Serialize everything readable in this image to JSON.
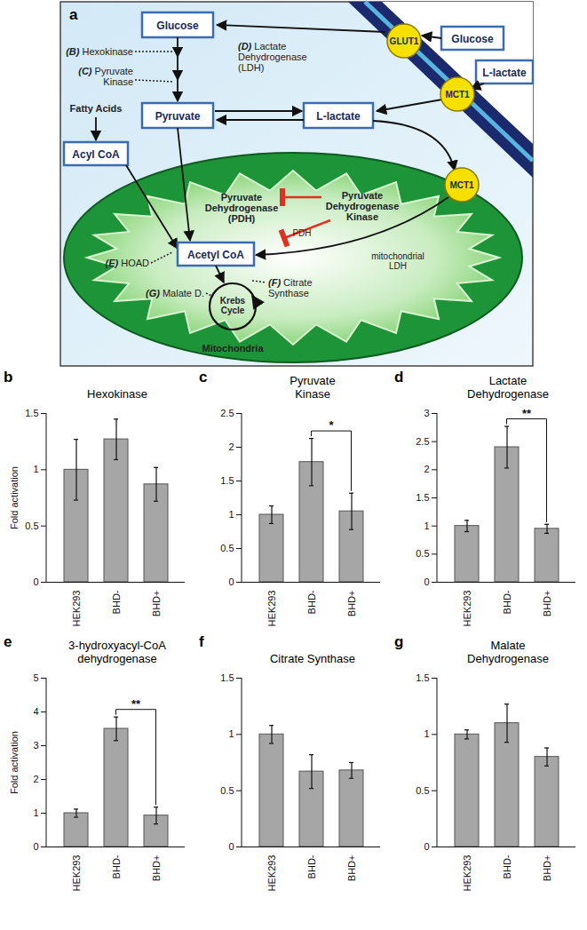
{
  "diagram": {
    "panel": "a",
    "boxes": {
      "glucose_out": "Glucose",
      "lactate_out": "L-lactate",
      "glucose_in": "Glucose",
      "pyruvate": "Pyruvate",
      "lactate_in": "L-lactate",
      "acyl_coa": "Acyl CoA",
      "acetyl_coa": "Acetyl CoA"
    },
    "transporters": {
      "glut1": "GLUT1",
      "mct1_cell": "MCT1",
      "mct1_mito": "MCT1"
    },
    "enzymes": {
      "hexokinase": {
        "letter": "(B)",
        "label": "Hexokinase"
      },
      "pyruvate_kinase": {
        "letter": "(C)",
        "label": "Pyruvate\nKinase"
      },
      "ldh": {
        "letter": "(D)",
        "label": "Lactate\nDehydrogenase\n(LDH)"
      },
      "hoad": {
        "letter": "(E)",
        "label": "HOAD"
      },
      "citrate_synthase": {
        "letter": "(F)",
        "label": "Citrate\nSynthase"
      },
      "malate_d": {
        "letter": "(G)",
        "label": "Malate D."
      }
    },
    "texts": {
      "fatty_acids": "Fatty Acids",
      "pdh": "Pyruvate\nDehydrogenase\n(PDH)",
      "pdk": "Pyruvate\nDehydrogenase\nKinase",
      "pdh_small": "PDH",
      "mito_ldh": "mitochondrial\nLDH",
      "krebs": "Krebs\nCycle",
      "mitochondria": "Mitochondria"
    }
  },
  "chart_data": [
    {
      "type": "bar",
      "panel": "b",
      "title": "Hexokinase",
      "y_label": "Fold activation",
      "categories": [
        "HEK293",
        "BHD-",
        "BHD+"
      ],
      "values": [
        1.0,
        1.27,
        0.87
      ],
      "errors": [
        0.27,
        0.18,
        0.15
      ],
      "color": "#a6a6a6",
      "ylim": [
        0,
        1.5
      ],
      "yticks": [
        0,
        0.5,
        1,
        1.5
      ],
      "significance": []
    },
    {
      "type": "bar",
      "panel": "c",
      "title": "Pyruvate\nKinase",
      "categories": [
        "HEK293",
        "BHD-",
        "BHD+"
      ],
      "values": [
        1.0,
        1.78,
        1.05
      ],
      "errors": [
        0.13,
        0.35,
        0.27
      ],
      "color": "#a6a6a6",
      "ylim": [
        0,
        2.5
      ],
      "yticks": [
        0,
        0.5,
        1,
        1.5,
        2,
        2.5
      ],
      "significance": [
        {
          "from": "BHD-",
          "to": "BHD+",
          "label": "*"
        }
      ]
    },
    {
      "type": "bar",
      "panel": "d",
      "title": "Lactate\nDehydrogenase",
      "categories": [
        "HEK293",
        "BHD-",
        "BHD+"
      ],
      "values": [
        1.0,
        2.4,
        0.95
      ],
      "errors": [
        0.1,
        0.37,
        0.08
      ],
      "color": "#a6a6a6",
      "ylim": [
        0,
        3
      ],
      "yticks": [
        0,
        0.5,
        1,
        1.5,
        2,
        2.5,
        3
      ],
      "significance": [
        {
          "from": "BHD-",
          "to": "BHD+",
          "label": "**"
        }
      ]
    },
    {
      "type": "bar",
      "panel": "e",
      "title": "3-hydroxyacyl-CoA\ndehydrogenase",
      "y_label": "Fold activation",
      "categories": [
        "HEK293",
        "BHD-",
        "BHD+"
      ],
      "values": [
        1.0,
        3.5,
        0.93
      ],
      "errors": [
        0.12,
        0.35,
        0.25
      ],
      "color": "#a6a6a6",
      "ylim": [
        0,
        5
      ],
      "yticks": [
        0,
        1,
        2,
        3,
        4,
        5
      ],
      "significance": [
        {
          "from": "BHD-",
          "to": "BHD+",
          "label": "**"
        }
      ]
    },
    {
      "type": "bar",
      "panel": "f",
      "title": "Citrate Synthase",
      "categories": [
        "HEK293",
        "BHD-",
        "BHD+"
      ],
      "values": [
        1.0,
        0.67,
        0.68
      ],
      "errors": [
        0.08,
        0.15,
        0.07
      ],
      "color": "#a6a6a6",
      "ylim": [
        0,
        1.5
      ],
      "yticks": [
        0,
        0.5,
        1,
        1.5
      ],
      "significance": []
    },
    {
      "type": "bar",
      "panel": "g",
      "title": "Malate\nDehydrogenase",
      "categories": [
        "HEK293",
        "BHD-",
        "BHD+"
      ],
      "values": [
        1.0,
        1.1,
        0.8
      ],
      "errors": [
        0.04,
        0.17,
        0.08
      ],
      "color": "#a6a6a6",
      "ylim": [
        0,
        1.5
      ],
      "yticks": [
        0,
        0.5,
        1,
        1.5
      ],
      "significance": []
    }
  ]
}
